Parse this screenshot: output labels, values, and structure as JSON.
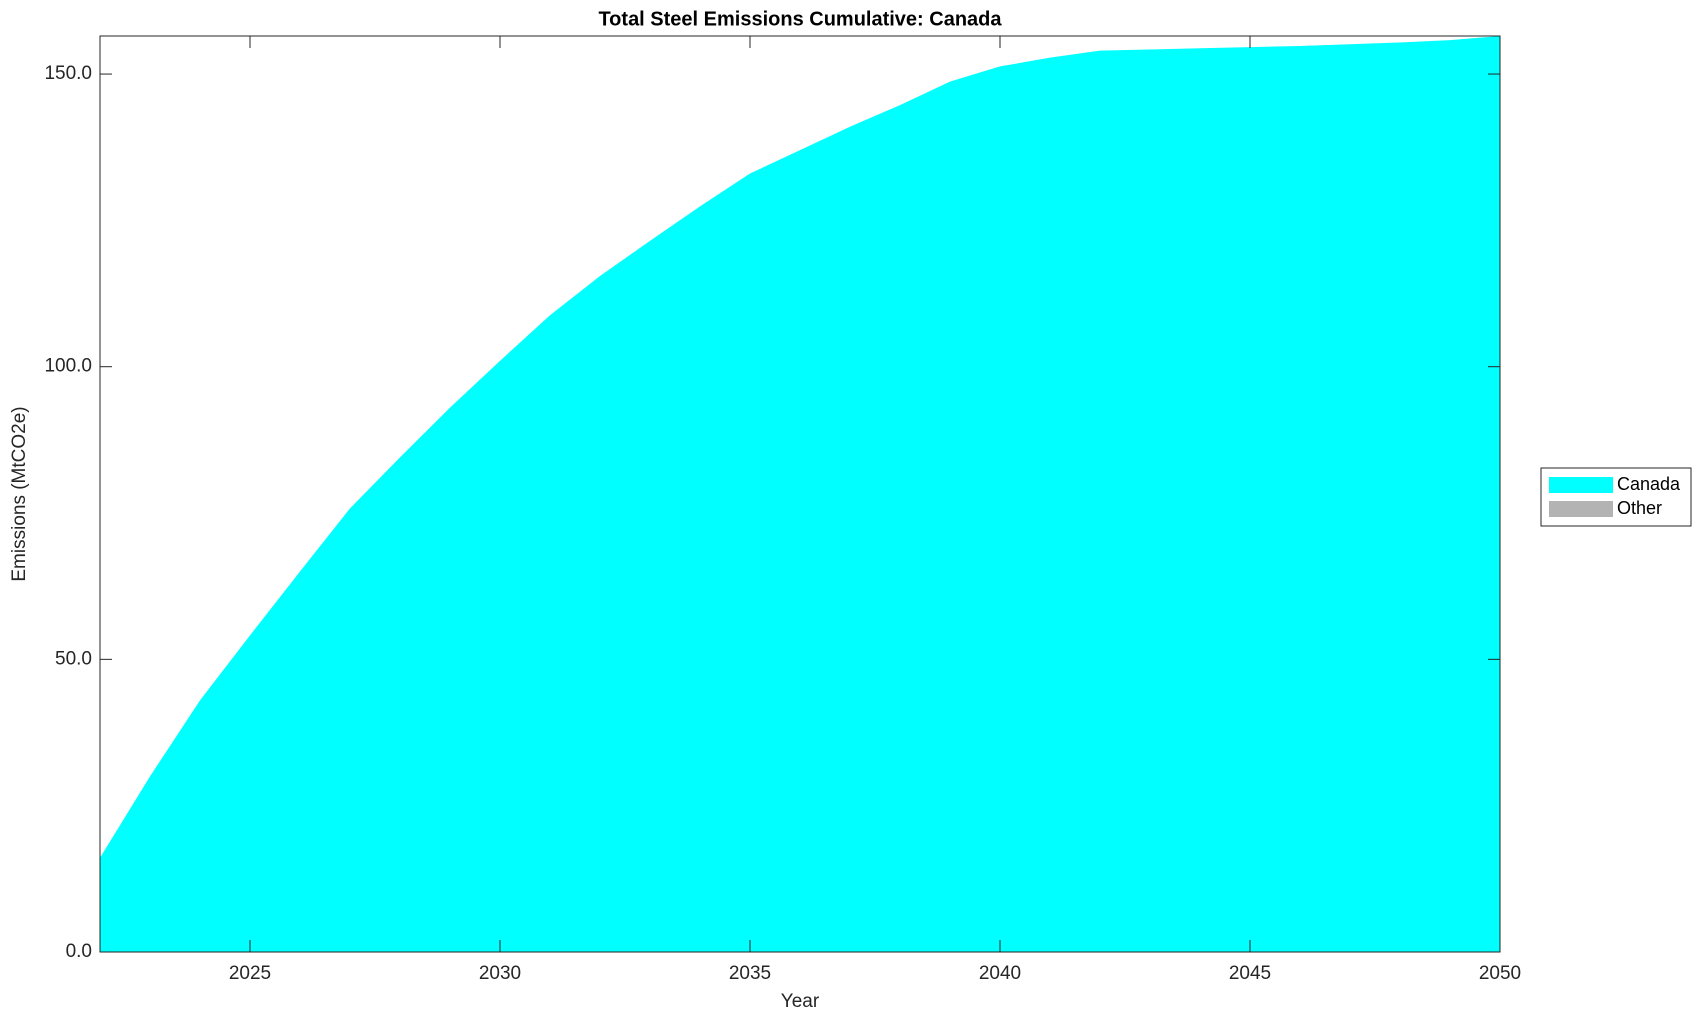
{
  "chart_data": {
    "type": "area",
    "stacked": true,
    "title": "Total Steel Emissions Cumulative: Canada",
    "x_label": "Year",
    "y_label": "Emissions (MtCO2e)",
    "x": [
      2022,
      2023,
      2024,
      2025,
      2026,
      2027,
      2028,
      2029,
      2030,
      2031,
      2032,
      2033,
      2034,
      2035,
      2036,
      2037,
      2038,
      2039,
      2040,
      2041,
      2042,
      2043,
      2044,
      2045,
      2046,
      2047,
      2048,
      2049,
      2050
    ],
    "series": [
      {
        "name": "Canada",
        "color": "#00ffff",
        "values": [
          16.1,
          30.0,
          43.0,
          54.1,
          65.0,
          75.8,
          84.5,
          93.0,
          101.0,
          108.8,
          115.5,
          121.5,
          127.4,
          133.0,
          137.0,
          141.0,
          144.7,
          148.7,
          151.3,
          152.8,
          154.0,
          154.2,
          154.4,
          154.6,
          154.8,
          155.1,
          155.4,
          155.8,
          156.5
        ]
      },
      {
        "name": "Other",
        "color": "#b3b3b3",
        "values": [
          0,
          0,
          0,
          0,
          0,
          0,
          0,
          0,
          0,
          0,
          0,
          0,
          0,
          0,
          0,
          0,
          0,
          0,
          0,
          0,
          0,
          0,
          0,
          0,
          0,
          0,
          0,
          0,
          0
        ]
      }
    ],
    "xlim": [
      2022,
      2050
    ],
    "xticks": [
      2025,
      2030,
      2035,
      2040,
      2045,
      2050
    ],
    "ylim": [
      0,
      156.5
    ],
    "yticks": [
      {
        "value": 0,
        "label": "0.0"
      },
      {
        "value": 50,
        "label": "50.0"
      },
      {
        "value": 100,
        "label": "100.0"
      },
      {
        "value": 150,
        "label": "150.0"
      }
    ],
    "legend": "right"
  }
}
